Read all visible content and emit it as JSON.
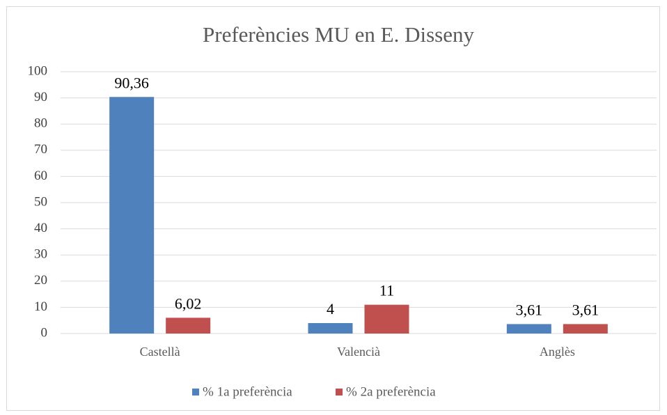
{
  "chart_data": {
    "type": "bar",
    "title": "Preferències MU en E. Disseny",
    "categories": [
      "Castellà",
      "Valencià",
      "Anglès"
    ],
    "series": [
      {
        "name": "% 1a preferència",
        "color": "#4f81bd",
        "values": [
          90.36,
          4,
          3.61
        ],
        "value_labels": [
          "90,36",
          "4",
          "3,61"
        ]
      },
      {
        "name": "% 2a preferència",
        "color": "#c0504d",
        "values": [
          6.02,
          11,
          3.61
        ],
        "value_labels": [
          "6,02",
          "11",
          "3,61"
        ]
      }
    ],
    "ylim": [
      0,
      100
    ],
    "yticks": [
      0,
      10,
      20,
      30,
      40,
      50,
      60,
      70,
      80,
      90,
      100
    ],
    "grid": true,
    "legend": "bottom"
  }
}
